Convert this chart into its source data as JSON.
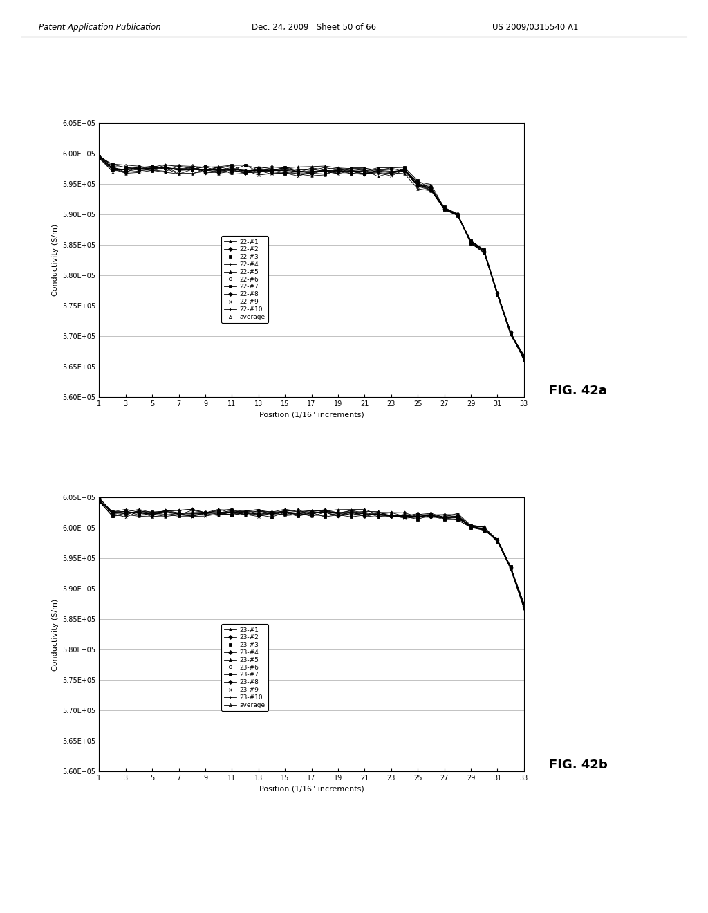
{
  "header_left": "Patent Application Publication",
  "header_center": "Dec. 24, 2009   Sheet 50 of 66",
  "header_right": "US 2009/0315540 A1",
  "fig_a_label": "FIG. 42a",
  "fig_b_label": "FIG. 42b",
  "ylabel": "Conductivity (S/m)",
  "xlabel": "Position (1/16\" increments)",
  "x_ticks": [
    1,
    3,
    5,
    7,
    9,
    11,
    13,
    15,
    17,
    19,
    21,
    23,
    25,
    27,
    29,
    31,
    33
  ],
  "ylim": [
    560000,
    605000
  ],
  "ytick_vals": [
    560000,
    565000,
    570000,
    575000,
    580000,
    585000,
    590000,
    595000,
    600000,
    605000
  ],
  "ytick_labels": [
    "5.60E+05",
    "5.65E+05",
    "5.70E+05",
    "5.75E+05",
    "5.80E+05",
    "5.85E+05",
    "5.90E+05",
    "5.95E+05",
    "6.00E+05",
    "6.05E+05"
  ],
  "series_a_labels": [
    "22-#1",
    "22-#2",
    "22-#3",
    "22-#4",
    "22-#5",
    "22-#6",
    "22-#7",
    "22-#8",
    "22-#9",
    "22-#10",
    "average"
  ],
  "series_b_labels": [
    "23-#1",
    "23-#2",
    "23-#3",
    "23-#4",
    "23-#5",
    "23-#6",
    "23-#7",
    "23-#8",
    "23-#9",
    "23-#10",
    "average"
  ],
  "background_color": "#ffffff",
  "line_color": "#000000"
}
